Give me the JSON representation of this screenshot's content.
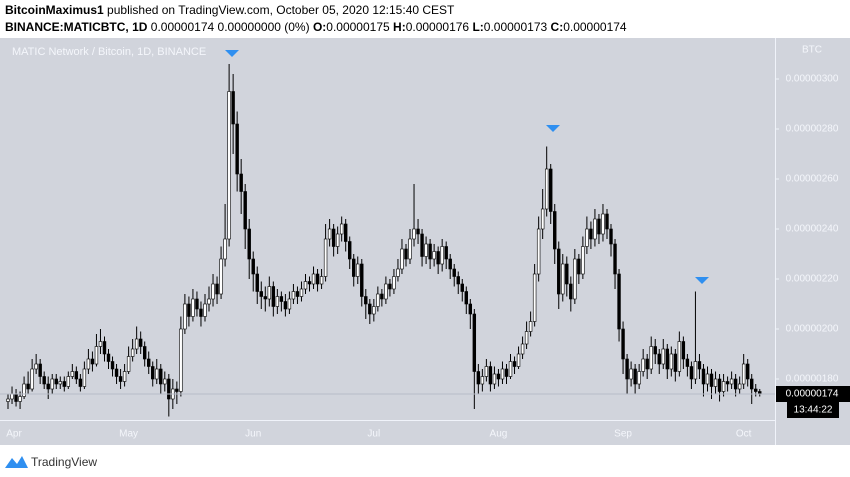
{
  "header": {
    "author": "BitcoinMaximus1",
    "published": "published on TradingView.com, October 05, 2020 12:15:40 CEST",
    "symbol": "BINANCE:MATICBTC, 1D",
    "quote": "0.00000174 0.00000000 (0%)",
    "ohlc": [
      {
        "key": "O:",
        "value": "0.00000175"
      },
      {
        "key": "H:",
        "value": "0.00000176"
      },
      {
        "key": "L:",
        "value": "0.00000173"
      },
      {
        "key": "C:",
        "value": "0.00000174"
      }
    ]
  },
  "footer": {
    "brand": "TradingView"
  },
  "chart_data": {
    "type": "candlestick",
    "title": "MATIC Network / Bitcoin, 1D, BINANCE",
    "y_unit": "BTC",
    "categories": [
      "Apr",
      null,
      null,
      null,
      null,
      null,
      null,
      null,
      null,
      null,
      null,
      null,
      null,
      null,
      null,
      null,
      null,
      null,
      null,
      null,
      null,
      null,
      null,
      null,
      null,
      null,
      null,
      null,
      null,
      null,
      "May",
      null,
      null,
      null,
      null,
      null,
      null,
      null,
      null,
      null,
      null,
      null,
      null,
      null,
      null,
      null,
      null,
      null,
      null,
      null,
      null,
      null,
      null,
      null,
      null,
      null,
      null,
      null,
      null,
      null,
      null,
      "Jun",
      null,
      null,
      null,
      null,
      null,
      null,
      null,
      null,
      null,
      null,
      null,
      null,
      null,
      null,
      null,
      null,
      null,
      null,
      null,
      null,
      null,
      null,
      null,
      null,
      null,
      null,
      null,
      null,
      null,
      "Jul",
      null,
      null,
      null,
      null,
      null,
      null,
      null,
      null,
      null,
      null,
      null,
      null,
      null,
      null,
      null,
      null,
      null,
      null,
      null,
      null,
      null,
      null,
      null,
      null,
      null,
      null,
      null,
      null,
      null,
      null,
      "Aug",
      null,
      null,
      null,
      null,
      null,
      null,
      null,
      null,
      null,
      null,
      null,
      null,
      null,
      null,
      null,
      null,
      null,
      null,
      null,
      null,
      null,
      null,
      null,
      null,
      null,
      null,
      null,
      null,
      null,
      null,
      "Sep",
      null,
      null,
      null,
      null,
      null,
      null,
      null,
      null,
      null,
      null,
      null,
      null,
      null,
      null,
      null,
      null,
      null,
      null,
      null,
      null,
      null,
      null,
      null,
      null,
      null,
      null,
      null,
      null,
      null,
      "Oct",
      null,
      null,
      null,
      null
    ],
    "open": [
      1.71e-06,
      1.72e-06,
      1.74e-06,
      1.71e-06,
      1.73e-06,
      1.78e-06,
      1.76e-06,
      1.84e-06,
      1.86e-06,
      1.81e-06,
      1.78e-06,
      1.76e-06,
      1.8e-06,
      1.78e-06,
      1.79e-06,
      1.77e-06,
      1.81e-06,
      1.83e-06,
      1.8e-06,
      1.77e-06,
      1.84e-06,
      1.88e-06,
      1.86e-06,
      1.93e-06,
      1.95e-06,
      1.9e-06,
      1.87e-06,
      1.84e-06,
      1.81e-06,
      1.79e-06,
      1.83e-06,
      1.89e-06,
      1.92e-06,
      1.96e-06,
      1.93e-06,
      1.88e-06,
      1.85e-06,
      1.8e-06,
      1.84e-06,
      1.78e-06,
      1.8e-06,
      1.72e-06,
      1.76e-06,
      1.75e-06,
      2e-06,
      2.1e-06,
      2.05e-06,
      2.12e-06,
      2.08e-06,
      2.05e-06,
      2.1e-06,
      2.12e-06,
      2.18e-06,
      2.14e-06,
      2.28e-06,
      2.36e-06,
      2.95e-06,
      2.82e-06,
      2.62e-06,
      2.55e-06,
      2.4e-06,
      2.28e-06,
      2.22e-06,
      2.15e-06,
      2.13e-06,
      2.12e-06,
      2.17e-06,
      2.09e-06,
      2.13e-06,
      2.11e-06,
      2.08e-06,
      2.12e-06,
      2.15e-06,
      2.13e-06,
      2.16e-06,
      2.19e-06,
      2.18e-06,
      2.22e-06,
      2.18e-06,
      2.21e-06,
      2.36e-06,
      2.4e-06,
      2.33e-06,
      2.38e-06,
      2.42e-06,
      2.35e-06,
      2.28e-06,
      2.21e-06,
      2.26e-06,
      2.13e-06,
      2.1e-06,
      2.06e-06,
      2.09e-06,
      2.14e-06,
      2.12e-06,
      2.18e-06,
      2.16e-06,
      2.21e-06,
      2.24e-06,
      2.32e-06,
      2.28e-06,
      2.36e-06,
      2.4e-06,
      2.38e-06,
      2.29e-06,
      2.34e-06,
      2.28e-06,
      2.31e-06,
      2.26e-06,
      2.33e-06,
      2.28e-06,
      2.24e-06,
      2.21e-06,
      2.18e-06,
      2.15e-06,
      2.1e-06,
      2.06e-06,
      1.83e-06,
      1.78e-06,
      1.81e-06,
      1.85e-06,
      1.78e-06,
      1.82e-06,
      1.8e-06,
      1.84e-06,
      1.81e-06,
      1.87e-06,
      1.85e-06,
      1.9e-06,
      1.94e-06,
      1.99e-06,
      2.03e-06,
      2.22e-06,
      2.4e-06,
      2.48e-06,
      2.64e-06,
      2.47e-06,
      2.32e-06,
      2.14e-06,
      2.26e-06,
      2.18e-06,
      2.12e-06,
      2.28e-06,
      2.22e-06,
      2.33e-06,
      2.4e-06,
      2.36e-06,
      2.44e-06,
      2.38e-06,
      2.46e-06,
      2.4e-06,
      2.34e-06,
      2.22e-06,
      2e-06,
      1.88e-06,
      1.8e-06,
      1.84e-06,
      1.78e-06,
      1.83e-06,
      1.88e-06,
      1.84e-06,
      1.93e-06,
      1.9e-06,
      1.86e-06,
      1.92e-06,
      1.84e-06,
      1.9e-06,
      1.83e-06,
      1.95e-06,
      1.88e-06,
      1.85e-06,
      1.8e-06,
      1.87e-06,
      1.84e-06,
      1.78e-06,
      1.82e-06,
      1.77e-06,
      1.8e-06,
      1.75e-06,
      1.79e-06,
      1.78e-06,
      1.8e-06,
      1.76e-06,
      1.78e-06,
      1.86e-06,
      1.8e-06,
      1.76e-06,
      1.75e-06
    ],
    "high": [
      1.74e-06,
      1.77e-06,
      1.76e-06,
      1.75e-06,
      1.81e-06,
      1.83e-06,
      1.88e-06,
      1.9e-06,
      1.88e-06,
      1.83e-06,
      1.81e-06,
      1.82e-06,
      1.82e-06,
      1.81e-06,
      1.81e-06,
      1.83e-06,
      1.86e-06,
      1.85e-06,
      1.82e-06,
      1.87e-06,
      1.92e-06,
      1.91e-06,
      1.98e-06,
      2e-06,
      1.97e-06,
      1.92e-06,
      1.89e-06,
      1.86e-06,
      1.84e-06,
      1.86e-06,
      1.93e-06,
      1.96e-06,
      2.01e-06,
      1.99e-06,
      1.95e-06,
      1.91e-06,
      1.87e-06,
      1.88e-06,
      1.86e-06,
      1.83e-06,
      1.82e-06,
      1.8e-06,
      1.79e-06,
      2.05e-06,
      2.14e-06,
      2.13e-06,
      2.16e-06,
      2.15e-06,
      2.11e-06,
      2.14e-06,
      2.17e-06,
      2.22e-06,
      2.21e-06,
      2.33e-06,
      2.5e-06,
      3.06e-06,
      3.02e-06,
      2.87e-06,
      2.68e-06,
      2.58e-06,
      2.44e-06,
      2.31e-06,
      2.25e-06,
      2.19e-06,
      2.17e-06,
      2.21e-06,
      2.19e-06,
      2.16e-06,
      2.15e-06,
      2.14e-06,
      2.15e-06,
      2.18e-06,
      2.17e-06,
      2.19e-06,
      2.22e-06,
      2.21e-06,
      2.25e-06,
      2.24e-06,
      2.24e-06,
      2.42e-06,
      2.44e-06,
      2.42e-06,
      2.41e-06,
      2.45e-06,
      2.44e-06,
      2.37e-06,
      2.3e-06,
      2.29e-06,
      2.28e-06,
      2.16e-06,
      2.12e-06,
      2.12e-06,
      2.17e-06,
      2.16e-06,
      2.21e-06,
      2.2e-06,
      2.24e-06,
      2.28e-06,
      2.36e-06,
      2.34e-06,
      2.4e-06,
      2.58e-06,
      2.44e-06,
      2.4e-06,
      2.37e-06,
      2.36e-06,
      2.34e-06,
      2.33e-06,
      2.36e-06,
      2.35e-06,
      2.3e-06,
      2.26e-06,
      2.23e-06,
      2.2e-06,
      2.17e-06,
      2.12e-06,
      2.08e-06,
      1.86e-06,
      1.84e-06,
      1.88e-06,
      1.87e-06,
      1.85e-06,
      1.84e-06,
      1.87e-06,
      1.86e-06,
      1.9e-06,
      1.89e-06,
      1.93e-06,
      1.97e-06,
      2.03e-06,
      2.07e-06,
      2.26e-06,
      2.45e-06,
      2.56e-06,
      2.73e-06,
      2.66e-06,
      2.5e-06,
      2.35e-06,
      2.3e-06,
      2.29e-06,
      2.21e-06,
      2.32e-06,
      2.3e-06,
      2.37e-06,
      2.45e-06,
      2.43e-06,
      2.48e-06,
      2.46e-06,
      2.5e-06,
      2.48e-06,
      2.42e-06,
      2.36e-06,
      2.24e-06,
      2.03e-06,
      1.9e-06,
      1.87e-06,
      1.86e-06,
      1.86e-06,
      1.92e-06,
      1.9e-06,
      1.97e-06,
      1.96e-06,
      1.92e-06,
      1.96e-06,
      1.94e-06,
      1.93e-06,
      1.92e-06,
      1.99e-06,
      1.97e-06,
      1.9e-06,
      1.87e-06,
      2.15e-06,
      1.9e-06,
      1.86e-06,
      1.85e-06,
      1.84e-06,
      1.83e-06,
      1.82e-06,
      1.82e-06,
      1.81e-06,
      1.83e-06,
      1.82e-06,
      1.81e-06,
      1.9e-06,
      1.88e-06,
      1.82e-06,
      1.78e-06,
      1.76e-06
    ],
    "low": [
      1.68e-06,
      1.7e-06,
      1.69e-06,
      1.68e-06,
      1.72e-06,
      1.74e-06,
      1.75e-06,
      1.82e-06,
      1.78e-06,
      1.76e-06,
      1.72e-06,
      1.74e-06,
      1.76e-06,
      1.76e-06,
      1.75e-06,
      1.76e-06,
      1.8e-06,
      1.78e-06,
      1.75e-06,
      1.76e-06,
      1.82e-06,
      1.83e-06,
      1.85e-06,
      1.9e-06,
      1.87e-06,
      1.84e-06,
      1.81e-06,
      1.78e-06,
      1.76e-06,
      1.77e-06,
      1.82e-06,
      1.87e-06,
      1.9e-06,
      1.9e-06,
      1.85e-06,
      1.82e-06,
      1.77e-06,
      1.78e-06,
      1.74e-06,
      1.75e-06,
      1.65e-06,
      1.68e-06,
      1.7e-06,
      1.73e-06,
      1.98e-06,
      2.01e-06,
      2.03e-06,
      2.05e-06,
      2.01e-06,
      2.03e-06,
      2.07e-06,
      2.09e-06,
      2.1e-06,
      2.12e-06,
      2.25e-06,
      2.33e-06,
      2.7e-06,
      2.55e-06,
      2.46e-06,
      2.32e-06,
      2.2e-06,
      2.15e-06,
      2.1e-06,
      2.08e-06,
      2.07e-06,
      2.09e-06,
      2.05e-06,
      2.06e-06,
      2.07e-06,
      2.05e-06,
      2.06e-06,
      2.1e-06,
      2.1e-06,
      2.11e-06,
      2.14e-06,
      2.15e-06,
      2.16e-06,
      2.15e-06,
      2.16e-06,
      2.19e-06,
      2.33e-06,
      2.29e-06,
      2.3e-06,
      2.35e-06,
      2.31e-06,
      2.24e-06,
      2.17e-06,
      2.18e-06,
      2.09e-06,
      2.04e-06,
      2.02e-06,
      2.03e-06,
      2.07e-06,
      2.09e-06,
      2.1e-06,
      2.13e-06,
      2.14e-06,
      2.19e-06,
      2.22e-06,
      2.25e-06,
      2.26e-06,
      2.33e-06,
      2.34e-06,
      2.25e-06,
      2.26e-06,
      2.24e-06,
      2.25e-06,
      2.22e-06,
      2.23e-06,
      2.24e-06,
      2.2e-06,
      2.17e-06,
      2.14e-06,
      2.11e-06,
      2.06e-06,
      2e-06,
      1.68e-06,
      1.74e-06,
      1.75e-06,
      1.79e-06,
      1.75e-06,
      1.76e-06,
      1.77e-06,
      1.78e-06,
      1.78e-06,
      1.8e-06,
      1.82e-06,
      1.84e-06,
      1.88e-06,
      1.92e-06,
      1.97e-06,
      2.01e-06,
      2.19e-06,
      2.36e-06,
      2.45e-06,
      2.42e-06,
      2.26e-06,
      2.08e-06,
      2.11e-06,
      2.13e-06,
      2.07e-06,
      2.1e-06,
      2.18e-06,
      2.2e-06,
      2.3e-06,
      2.32e-06,
      2.33e-06,
      2.34e-06,
      2.35e-06,
      2.36e-06,
      2.29e-06,
      2.16e-06,
      1.95e-06,
      1.82e-06,
      1.74e-06,
      1.77e-06,
      1.74e-06,
      1.76e-06,
      1.81e-06,
      1.8e-06,
      1.82e-06,
      1.86e-06,
      1.82e-06,
      1.84e-06,
      1.8e-06,
      1.81e-06,
      1.79e-06,
      1.81e-06,
      1.84e-06,
      1.81e-06,
      1.76e-06,
      1.78e-06,
      1.8e-06,
      1.73e-06,
      1.75e-06,
      1.72e-06,
      1.74e-06,
      1.71e-06,
      1.73e-06,
      1.75e-06,
      1.76e-06,
      1.73e-06,
      1.74e-06,
      1.76e-06,
      1.77e-06,
      1.7e-06,
      1.73e-06,
      1.73e-06
    ],
    "close": [
      1.72e-06,
      1.74e-06,
      1.71e-06,
      1.73e-06,
      1.78e-06,
      1.76e-06,
      1.84e-06,
      1.86e-06,
      1.81e-06,
      1.78e-06,
      1.76e-06,
      1.8e-06,
      1.78e-06,
      1.79e-06,
      1.77e-06,
      1.81e-06,
      1.83e-06,
      1.8e-06,
      1.77e-06,
      1.84e-06,
      1.88e-06,
      1.86e-06,
      1.93e-06,
      1.95e-06,
      1.9e-06,
      1.87e-06,
      1.84e-06,
      1.81e-06,
      1.79e-06,
      1.83e-06,
      1.89e-06,
      1.92e-06,
      1.96e-06,
      1.93e-06,
      1.88e-06,
      1.85e-06,
      1.8e-06,
      1.84e-06,
      1.78e-06,
      1.8e-06,
      1.72e-06,
      1.76e-06,
      1.75e-06,
      2e-06,
      2.1e-06,
      2.05e-06,
      2.12e-06,
      2.08e-06,
      2.05e-06,
      2.1e-06,
      2.12e-06,
      2.18e-06,
      2.14e-06,
      2.28e-06,
      2.36e-06,
      2.95e-06,
      2.82e-06,
      2.62e-06,
      2.55e-06,
      2.4e-06,
      2.28e-06,
      2.22e-06,
      2.15e-06,
      2.13e-06,
      2.12e-06,
      2.17e-06,
      2.09e-06,
      2.13e-06,
      2.11e-06,
      2.08e-06,
      2.12e-06,
      2.15e-06,
      2.13e-06,
      2.16e-06,
      2.19e-06,
      2.18e-06,
      2.22e-06,
      2.18e-06,
      2.21e-06,
      2.36e-06,
      2.4e-06,
      2.33e-06,
      2.38e-06,
      2.42e-06,
      2.35e-06,
      2.28e-06,
      2.21e-06,
      2.26e-06,
      2.13e-06,
      2.1e-06,
      2.06e-06,
      2.09e-06,
      2.14e-06,
      2.12e-06,
      2.18e-06,
      2.16e-06,
      2.21e-06,
      2.24e-06,
      2.32e-06,
      2.28e-06,
      2.36e-06,
      2.4e-06,
      2.38e-06,
      2.29e-06,
      2.34e-06,
      2.28e-06,
      2.31e-06,
      2.26e-06,
      2.33e-06,
      2.28e-06,
      2.24e-06,
      2.21e-06,
      2.18e-06,
      2.15e-06,
      2.1e-06,
      2.06e-06,
      1.83e-06,
      1.78e-06,
      1.81e-06,
      1.85e-06,
      1.78e-06,
      1.82e-06,
      1.8e-06,
      1.84e-06,
      1.81e-06,
      1.87e-06,
      1.85e-06,
      1.9e-06,
      1.94e-06,
      1.99e-06,
      2.03e-06,
      2.22e-06,
      2.4e-06,
      2.48e-06,
      2.64e-06,
      2.47e-06,
      2.32e-06,
      2.14e-06,
      2.26e-06,
      2.18e-06,
      2.12e-06,
      2.28e-06,
      2.22e-06,
      2.33e-06,
      2.4e-06,
      2.36e-06,
      2.44e-06,
      2.38e-06,
      2.46e-06,
      2.4e-06,
      2.34e-06,
      2.22e-06,
      2e-06,
      1.88e-06,
      1.8e-06,
      1.84e-06,
      1.78e-06,
      1.83e-06,
      1.88e-06,
      1.84e-06,
      1.93e-06,
      1.9e-06,
      1.86e-06,
      1.92e-06,
      1.84e-06,
      1.9e-06,
      1.83e-06,
      1.95e-06,
      1.88e-06,
      1.85e-06,
      1.8e-06,
      1.87e-06,
      1.84e-06,
      1.78e-06,
      1.82e-06,
      1.77e-06,
      1.8e-06,
      1.75e-06,
      1.79e-06,
      1.78e-06,
      1.8e-06,
      1.76e-06,
      1.78e-06,
      1.86e-06,
      1.8e-06,
      1.76e-06,
      1.75e-06,
      1.74e-06
    ],
    "up_color": "#ffffff",
    "down_color": "#000000",
    "wick_color": "#000000",
    "ylim": [
      1.636e-06,
      3.164e-06
    ],
    "yticks": [
      {
        "value": 1.8e-06,
        "label": "0.00000180"
      },
      {
        "value": 2e-06,
        "label": "0.00000200"
      },
      {
        "value": 2.2e-06,
        "label": "0.00000220"
      },
      {
        "value": 2.4e-06,
        "label": "0.00000240"
      },
      {
        "value": 2.6e-06,
        "label": "0.00000260"
      },
      {
        "value": 2.8e-06,
        "label": "0.00000280"
      },
      {
        "value": 3e-06,
        "label": "0.00000300"
      }
    ],
    "last_price": {
      "value": 1.74e-06,
      "label": "0.00000174"
    },
    "countdown": "13:44:22"
  }
}
